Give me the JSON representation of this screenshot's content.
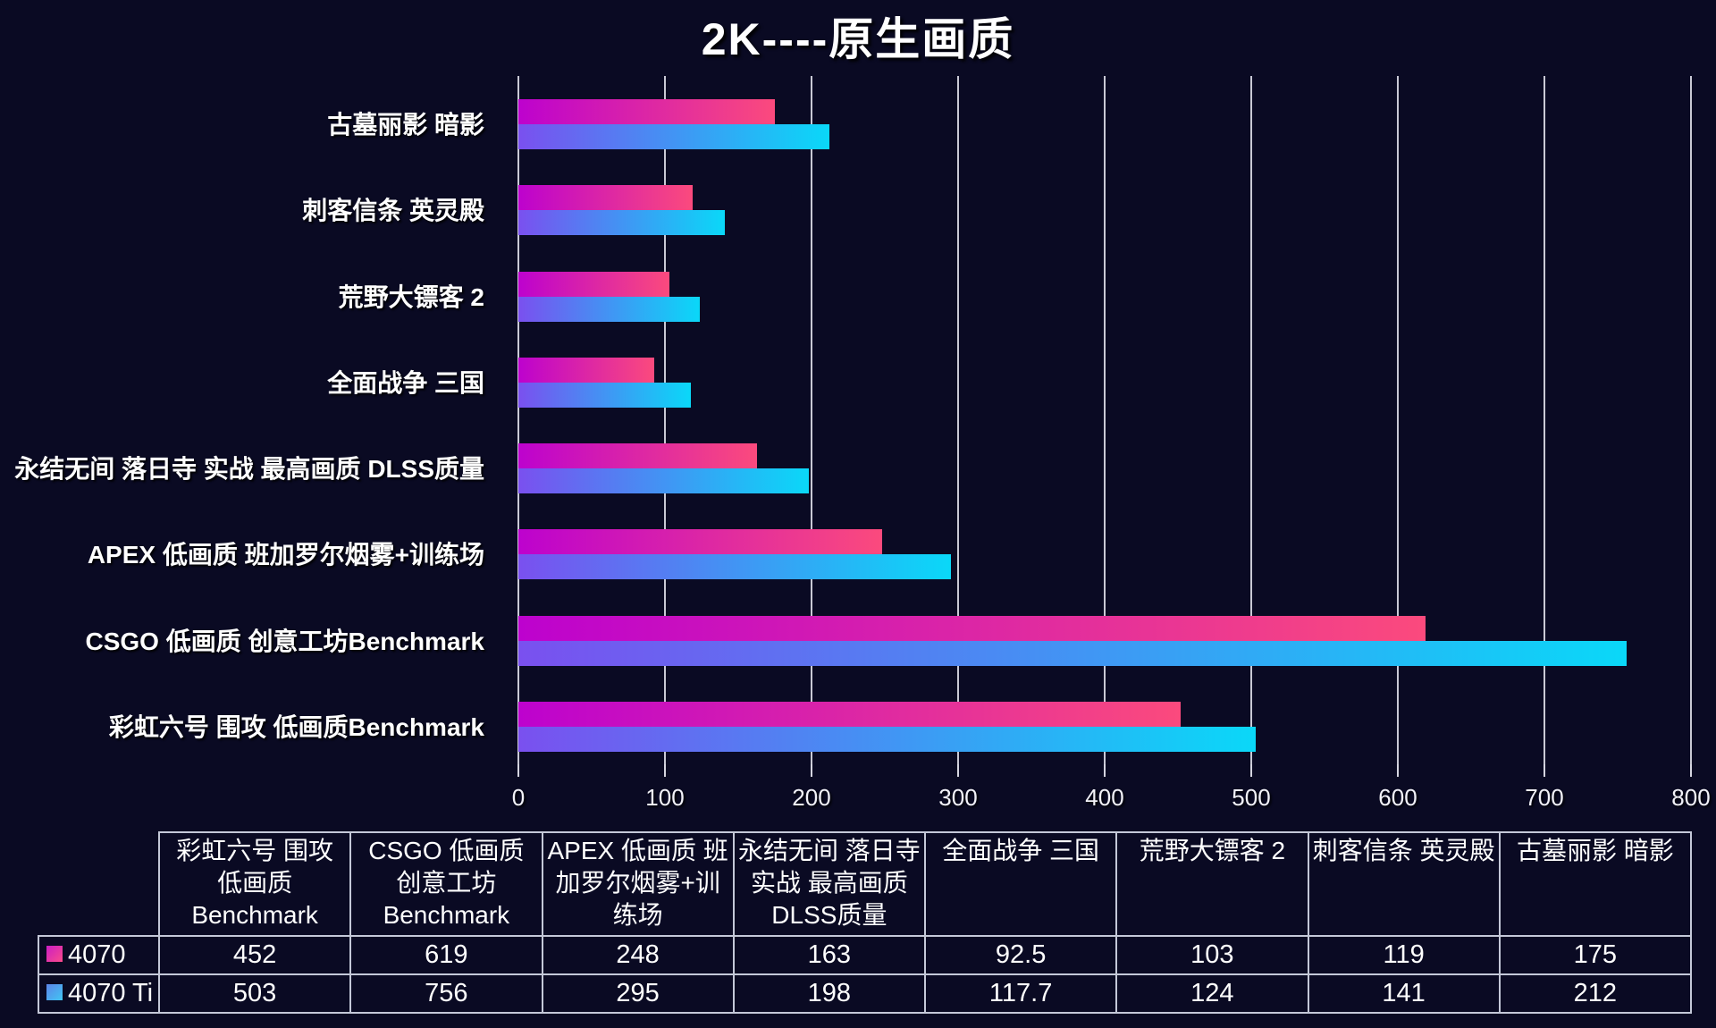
{
  "title": "2K----原生画质",
  "colors": {
    "background": "#0a0a23",
    "series_4070_gradient": [
      "#bd02ce",
      "#fb4a7d"
    ],
    "series_4070ti_gradient": [
      "#7a50ef",
      "#0ad8f8"
    ],
    "gridline": "#ebebf5",
    "table_border": "#c4c8d8",
    "text": "#ffffff"
  },
  "chart_data": {
    "type": "bar",
    "orientation": "horizontal",
    "title": "2K----原生画质",
    "xlabel": "",
    "ylabel": "",
    "xlim": [
      0,
      800
    ],
    "x_ticks": [
      0,
      100,
      200,
      300,
      400,
      500,
      600,
      700,
      800
    ],
    "grid": true,
    "categories_top_to_bottom": [
      "古墓丽影 暗影",
      "刺客信条 英灵殿",
      "荒野大镖客 2",
      "全面战争 三国",
      "永结无间 落日寺 实战 最高画质 DLSS质量",
      "APEX 低画质 班加罗尔烟雾+训练场",
      "CSGO 低画质 创意工坊Benchmark",
      "彩虹六号 围攻 低画质Benchmark"
    ],
    "series": [
      {
        "name": "4070",
        "values": [
          175,
          119,
          103,
          92.5,
          163,
          248,
          619,
          452
        ]
      },
      {
        "name": "4070 Ti",
        "values": [
          212,
          141,
          124,
          117.7,
          198,
          295,
          756,
          503
        ]
      }
    ],
    "legend_position": "data-table-bottom"
  },
  "table": {
    "corner_label": "",
    "columns": [
      "彩虹六号 围攻 低画质Benchmark",
      "CSGO 低画质 创意工坊Benchmark",
      "APEX 低画质 班加罗尔烟雾+训练场",
      "永结无间 落日寺 实战 最高画质 DLSS质量",
      "全面战争 三国",
      "荒野大镖客 2",
      "刺客信条 英灵殿",
      "古墓丽影 暗影"
    ],
    "rows": [
      {
        "legend": "4070",
        "values": [
          "452",
          "619",
          "248",
          "163",
          "92.5",
          "103",
          "119",
          "175"
        ]
      },
      {
        "legend": "4070 Ti",
        "values": [
          "503",
          "756",
          "295",
          "198",
          "117.7",
          "124",
          "141",
          "212"
        ]
      }
    ]
  }
}
